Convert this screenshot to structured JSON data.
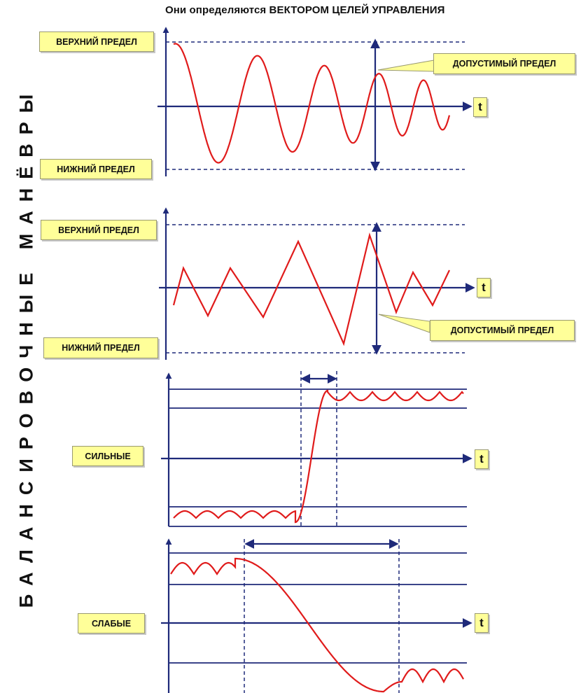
{
  "title": "Они определяются ВЕКТОРОМ ЦЕЛЕЙ УПРАВЛЕНИЯ",
  "side_label": "БАЛАНСИРОВОЧНЫЕ МАНЁВРЫ",
  "time_label": "t",
  "panels": [
    {
      "id": "panel1",
      "upper_label": "ВЕРХНИЙ ПРЕДЕЛ",
      "lower_label": "НИЖНИЙ ПРЕДЕЛ",
      "callout": "ДОПУСТИМЫЙ ПРЕДЕЛ",
      "signal": "decaying sine oscillation"
    },
    {
      "id": "panel2",
      "upper_label": "ВЕРХНИЙ ПРЕДЕЛ",
      "lower_label": "НИЖНИЙ ПРЕДЕЛ",
      "callout": "ДОПУСТИМЫЙ ПРЕДЕЛ",
      "signal": "triangular oscillation"
    },
    {
      "id": "panel3",
      "label": "СИЛЬНЫЕ",
      "signal": "fast step transition"
    },
    {
      "id": "panel4",
      "label": "СЛАБЫЕ",
      "signal": "slow transition"
    }
  ],
  "colors": {
    "axis": "#1f2a7a",
    "curve": "#e01b1b",
    "box_fill": "#ffff99",
    "text": "#111111"
  }
}
